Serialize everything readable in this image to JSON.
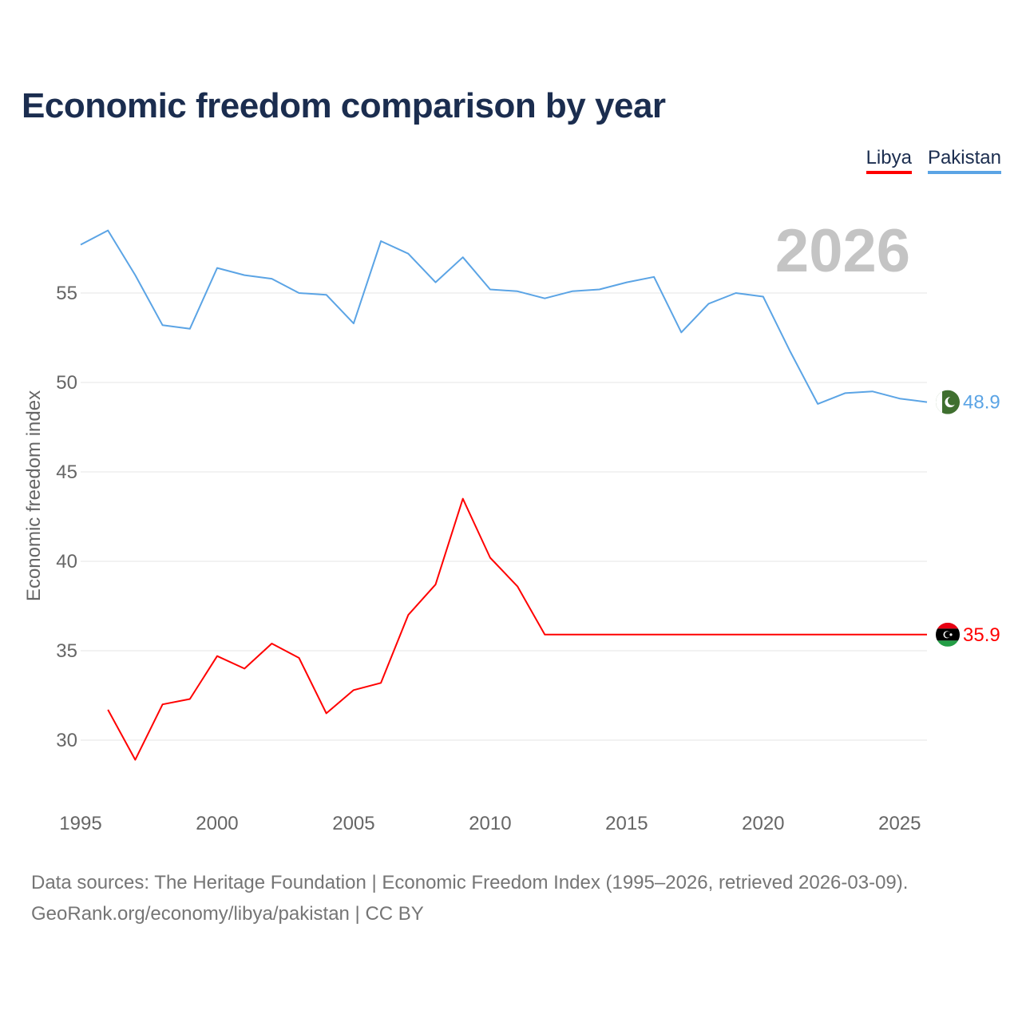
{
  "title": "Economic freedom comparison by year",
  "legend": [
    {
      "label": "Libya",
      "color": "#ff0000"
    },
    {
      "label": "Pakistan",
      "color": "#5ba4e5"
    }
  ],
  "footer": {
    "line1": "Data sources: The Heritage Foundation | Economic Freedom Index (1995–2026, retrieved 2026-03-09).",
    "line2": "GeoRank.org/economy/libya/pakistan | CC BY"
  },
  "chart_data": {
    "type": "line",
    "title": "Economic freedom comparison by year",
    "ylabel": "Economic freedom index",
    "xlabel": "",
    "xlim": [
      1995,
      2026
    ],
    "ylim": [
      27,
      59.5
    ],
    "x_ticks": [
      1995,
      2000,
      2005,
      2010,
      2015,
      2020,
      2025
    ],
    "y_ticks": [
      30,
      35,
      40,
      45,
      50,
      55
    ],
    "year_watermark": "2026",
    "series": [
      {
        "name": "Pakistan",
        "color": "#5ba4e5",
        "end_label": "48.9",
        "x": [
          1995,
          1996,
          1997,
          1998,
          1999,
          2000,
          2001,
          2002,
          2003,
          2004,
          2005,
          2006,
          2007,
          2008,
          2009,
          2010,
          2011,
          2012,
          2013,
          2014,
          2015,
          2016,
          2017,
          2018,
          2019,
          2020,
          2021,
          2022,
          2023,
          2024,
          2025,
          2026
        ],
        "values": [
          57.7,
          58.5,
          56.0,
          53.2,
          53.0,
          56.4,
          56.0,
          55.8,
          55.0,
          54.9,
          53.3,
          57.9,
          57.2,
          55.6,
          57.0,
          55.2,
          55.1,
          54.7,
          55.1,
          55.2,
          55.6,
          55.9,
          52.8,
          54.4,
          55.0,
          54.8,
          51.7,
          48.8,
          49.4,
          49.5,
          49.1,
          48.9
        ]
      },
      {
        "name": "Libya",
        "color": "#ff0000",
        "end_label": "35.9",
        "x": [
          1996,
          1997,
          1998,
          1999,
          2000,
          2001,
          2002,
          2003,
          2004,
          2005,
          2006,
          2007,
          2008,
          2009,
          2010,
          2011,
          2012,
          2026
        ],
        "values": [
          31.7,
          28.9,
          32.0,
          32.3,
          34.7,
          34.0,
          35.4,
          34.6,
          31.5,
          32.8,
          33.2,
          37.0,
          38.7,
          43.5,
          40.2,
          38.6,
          35.9,
          35.9
        ]
      }
    ]
  }
}
